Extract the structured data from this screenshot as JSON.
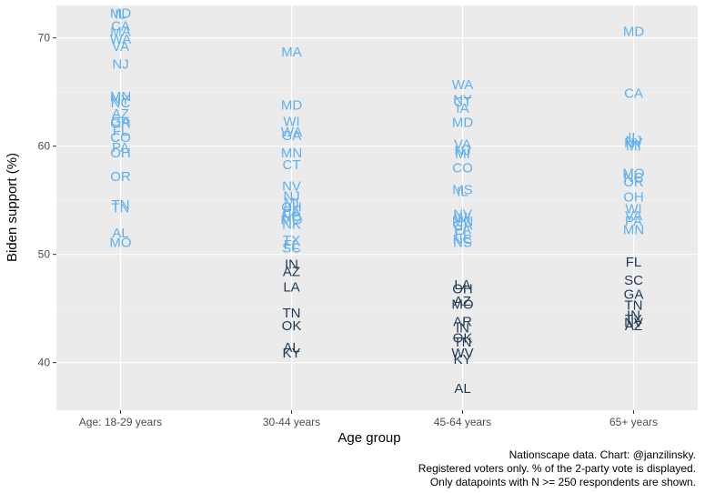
{
  "chart_data": {
    "type": "scatter",
    "title": "",
    "xlabel": "Age group",
    "ylabel": "Biden support (%)",
    "ylim": [
      35.6,
      73
    ],
    "yticks": [
      40,
      50,
      60,
      70
    ],
    "grid": true,
    "categories": [
      "Age: 18-29 years",
      "30-44 years",
      "45-64 years",
      "65+ years"
    ],
    "color_above_50": "#5fb0f0",
    "color_below_50": "#1f3a56",
    "points": [
      {
        "category": "Age: 18-29 years",
        "label": "MD",
        "y": 72.3
      },
      {
        "category": "Age: 18-29 years",
        "label": "IL",
        "y": 72.2
      },
      {
        "category": "Age: 18-29 years",
        "label": "CA",
        "y": 71.1
      },
      {
        "category": "Age: 18-29 years",
        "label": "MA",
        "y": 70.6
      },
      {
        "category": "Age: 18-29 years",
        "label": "WA",
        "y": 69.9
      },
      {
        "category": "Age: 18-29 years",
        "label": "VA",
        "y": 69.2
      },
      {
        "category": "Age: 18-29 years",
        "label": "NJ",
        "y": 67.6
      },
      {
        "category": "Age: 18-29 years",
        "label": "MN",
        "y": 64.6
      },
      {
        "category": "Age: 18-29 years",
        "label": "NY",
        "y": 64.3
      },
      {
        "category": "Age: 18-29 years",
        "label": "NC",
        "y": 64.0
      },
      {
        "category": "Age: 18-29 years",
        "label": "AZ",
        "y": 63.0
      },
      {
        "category": "Age: 18-29 years",
        "label": "GA",
        "y": 62.3
      },
      {
        "category": "Age: 18-29 years",
        "label": "OR",
        "y": 62.1
      },
      {
        "category": "Age: 18-29 years",
        "label": "FL",
        "y": 61.4
      },
      {
        "category": "Age: 18-29 years",
        "label": "CO",
        "y": 60.8
      },
      {
        "category": "Age: 18-29 years",
        "label": "PA",
        "y": 59.9
      },
      {
        "category": "Age: 18-29 years",
        "label": "OH",
        "y": 59.4
      },
      {
        "category": "Age: 18-29 years",
        "label": "OR",
        "y": 57.2
      },
      {
        "category": "Age: 18-29 years",
        "label": "TN",
        "y": 54.6
      },
      {
        "category": "Age: 18-29 years",
        "label": "TN",
        "y": 54.3
      },
      {
        "category": "Age: 18-29 years",
        "label": "AL",
        "y": 52.0
      },
      {
        "category": "Age: 18-29 years",
        "label": "MO",
        "y": 51.1
      },
      {
        "category": "30-44 years",
        "label": "MA",
        "y": 68.7
      },
      {
        "category": "30-44 years",
        "label": "MD",
        "y": 63.8
      },
      {
        "category": "30-44 years",
        "label": "WI",
        "y": 62.3
      },
      {
        "category": "30-44 years",
        "label": "WA",
        "y": 61.3
      },
      {
        "category": "30-44 years",
        "label": "GA",
        "y": 61.0
      },
      {
        "category": "30-44 years",
        "label": "MN",
        "y": 59.4
      },
      {
        "category": "30-44 years",
        "label": "CT",
        "y": 58.3
      },
      {
        "category": "30-44 years",
        "label": "NV",
        "y": 56.3
      },
      {
        "category": "30-44 years",
        "label": "NJ",
        "y": 55.4
      },
      {
        "category": "30-44 years",
        "label": "MI",
        "y": 54.8
      },
      {
        "category": "30-44 years",
        "label": "OH",
        "y": 54.4
      },
      {
        "category": "30-44 years",
        "label": "PA",
        "y": 54.0
      },
      {
        "category": "30-44 years",
        "label": "CA",
        "y": 53.8
      },
      {
        "category": "30-44 years",
        "label": "NC",
        "y": 53.5
      },
      {
        "category": "30-44 years",
        "label": "MO",
        "y": 53.2
      },
      {
        "category": "30-44 years",
        "label": "NK",
        "y": 52.8
      },
      {
        "category": "30-44 years",
        "label": "TX",
        "y": 51.3
      },
      {
        "category": "30-44 years",
        "label": "FL",
        "y": 50.9
      },
      {
        "category": "30-44 years",
        "label": "SC",
        "y": 50.6
      },
      {
        "category": "30-44 years",
        "label": "IN",
        "y": 49.1
      },
      {
        "category": "30-44 years",
        "label": "AZ",
        "y": 48.4
      },
      {
        "category": "30-44 years",
        "label": "LA",
        "y": 47.0
      },
      {
        "category": "30-44 years",
        "label": "TN",
        "y": 44.6
      },
      {
        "category": "30-44 years",
        "label": "OK",
        "y": 43.4
      },
      {
        "category": "30-44 years",
        "label": "AL",
        "y": 41.4
      },
      {
        "category": "30-44 years",
        "label": "KY",
        "y": 40.9
      },
      {
        "category": "45-64 years",
        "label": "WA",
        "y": 65.7
      },
      {
        "category": "45-64 years",
        "label": "NY",
        "y": 64.3
      },
      {
        "category": "45-64 years",
        "label": "CT",
        "y": 64.1
      },
      {
        "category": "45-64 years",
        "label": "IA",
        "y": 63.5
      },
      {
        "category": "45-64 years",
        "label": "MD",
        "y": 62.2
      },
      {
        "category": "45-64 years",
        "label": "VA",
        "y": 60.2
      },
      {
        "category": "45-64 years",
        "label": "NJ",
        "y": 59.6
      },
      {
        "category": "45-64 years",
        "label": "MI",
        "y": 59.3
      },
      {
        "category": "45-64 years",
        "label": "CO",
        "y": 58.0
      },
      {
        "category": "45-64 years",
        "label": "MS",
        "y": 56.0
      },
      {
        "category": "45-64 years",
        "label": "IL",
        "y": 55.8
      },
      {
        "category": "45-64 years",
        "label": "NV",
        "y": 53.7
      },
      {
        "category": "45-64 years",
        "label": "WI",
        "y": 53.4
      },
      {
        "category": "45-64 years",
        "label": "MN",
        "y": 53.1
      },
      {
        "category": "45-64 years",
        "label": "GA",
        "y": 52.7
      },
      {
        "category": "45-64 years",
        "label": "PA",
        "y": 52.3
      },
      {
        "category": "45-64 years",
        "label": "FL",
        "y": 51.9
      },
      {
        "category": "45-64 years",
        "label": "NC",
        "y": 51.4
      },
      {
        "category": "45-64 years",
        "label": "NS",
        "y": 51.1
      },
      {
        "category": "45-64 years",
        "label": "LA",
        "y": 47.2
      },
      {
        "category": "45-64 years",
        "label": "OH",
        "y": 46.8
      },
      {
        "category": "45-64 years",
        "label": "AZ",
        "y": 45.7
      },
      {
        "category": "45-64 years",
        "label": "MO",
        "y": 45.4
      },
      {
        "category": "45-64 years",
        "label": "AR",
        "y": 43.8
      },
      {
        "category": "45-64 years",
        "label": "IN",
        "y": 43.2
      },
      {
        "category": "45-64 years",
        "label": "OK",
        "y": 42.3
      },
      {
        "category": "45-64 years",
        "label": "TN",
        "y": 41.9
      },
      {
        "category": "45-64 years",
        "label": "WV",
        "y": 40.9
      },
      {
        "category": "45-64 years",
        "label": "KY",
        "y": 40.3
      },
      {
        "category": "45-64 years",
        "label": "AL",
        "y": 37.6
      },
      {
        "category": "65+ years",
        "label": "MD",
        "y": 70.6
      },
      {
        "category": "65+ years",
        "label": "CA",
        "y": 64.9
      },
      {
        "category": "65+ years",
        "label": "IL",
        "y": 60.8
      },
      {
        "category": "65+ years",
        "label": "NJ",
        "y": 60.5
      },
      {
        "category": "65+ years",
        "label": "NY",
        "y": 60.3
      },
      {
        "category": "65+ years",
        "label": "MI",
        "y": 60.0
      },
      {
        "category": "65+ years",
        "label": "MO",
        "y": 57.5
      },
      {
        "category": "65+ years",
        "label": "NC",
        "y": 57.1
      },
      {
        "category": "65+ years",
        "label": "OR",
        "y": 56.7
      },
      {
        "category": "65+ years",
        "label": "OH",
        "y": 55.3
      },
      {
        "category": "65+ years",
        "label": "WI",
        "y": 54.2
      },
      {
        "category": "65+ years",
        "label": "VA",
        "y": 53.6
      },
      {
        "category": "65+ years",
        "label": "PA",
        "y": 53.1
      },
      {
        "category": "65+ years",
        "label": "MN",
        "y": 52.3
      },
      {
        "category": "65+ years",
        "label": "FL",
        "y": 49.3
      },
      {
        "category": "65+ years",
        "label": "SC",
        "y": 47.6
      },
      {
        "category": "65+ years",
        "label": "GA",
        "y": 46.3
      },
      {
        "category": "65+ years",
        "label": "TN",
        "y": 45.3
      },
      {
        "category": "65+ years",
        "label": "IN",
        "y": 44.4
      },
      {
        "category": "65+ years",
        "label": "TX",
        "y": 44.0
      },
      {
        "category": "65+ years",
        "label": "NV",
        "y": 43.7
      },
      {
        "category": "65+ years",
        "label": "AZ",
        "y": 43.4
      }
    ]
  },
  "caption": {
    "line1": "Nationscape data. Chart: @janzilinsky.",
    "line2": "Registered voters only. % of the 2-party vote is displayed.",
    "line3": "Only datapoints with N >= 250 respondents are shown."
  }
}
